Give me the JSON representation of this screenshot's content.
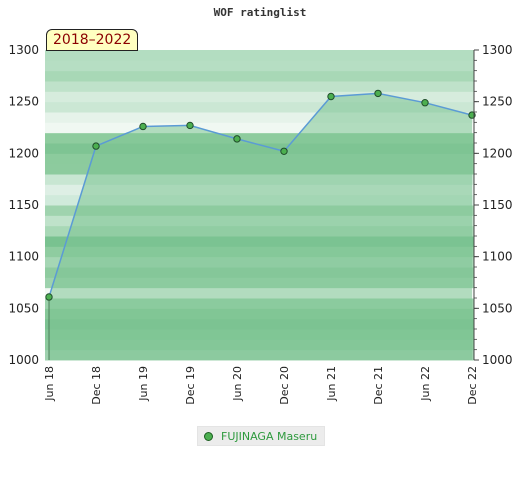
{
  "header": {
    "title": "WOF ratinglist",
    "period_badge": "2018–2022"
  },
  "legend": {
    "series_label": "FUJINAGA Maseru"
  },
  "colors": {
    "line": "#5b9bd5",
    "fill": "#7dc494",
    "marker": "#4caf50",
    "badge_bg": "#ffffc0",
    "badge_text": "#8b0000"
  },
  "chart_data": {
    "type": "area",
    "title": "WOF ratinglist",
    "xlabel": "",
    "ylabel": "",
    "x": [
      "Jun 18",
      "Dec 18",
      "Jun 19",
      "Dec 19",
      "Jun 20",
      "Dec 20",
      "Jun 21",
      "Dec 21",
      "Jun 22",
      "Dec 22"
    ],
    "series": [
      {
        "name": "FUJINAGA Maseru",
        "values": [
          1061,
          1207,
          1226,
          1227,
          1214,
          1202,
          1255,
          1258,
          1249,
          1237
        ]
      }
    ],
    "ylim": [
      1000,
      1300
    ],
    "yticks": [
      1000,
      1050,
      1100,
      1150,
      1200,
      1250,
      1300
    ],
    "band_shades": [
      "#9ed1ae",
      "#8dcb9e",
      "#84c798",
      "#7bc291",
      "#86c898",
      "#9bd2ab",
      "#f2f9f4",
      "#9dd2ad",
      "#8ecb9f",
      "#a5d6b4",
      "#8fcca0",
      "#79c290",
      "#a8d8b6",
      "#bfe2ca",
      "#9fd3ae",
      "#d0eadb",
      "#deefe5",
      "#c8e6d2",
      "#8dcb9e",
      "#8ccb9d",
      "#7ec493",
      "#8ecc9e",
      "#f0f8f2",
      "#e6f3ea",
      "#cbe7d4",
      "#d6ecdd",
      "#bfe2ca",
      "#a8d8b6",
      "#b6dec3",
      "#b3ddc1"
    ],
    "grid": false,
    "legend_position": "bottom"
  }
}
